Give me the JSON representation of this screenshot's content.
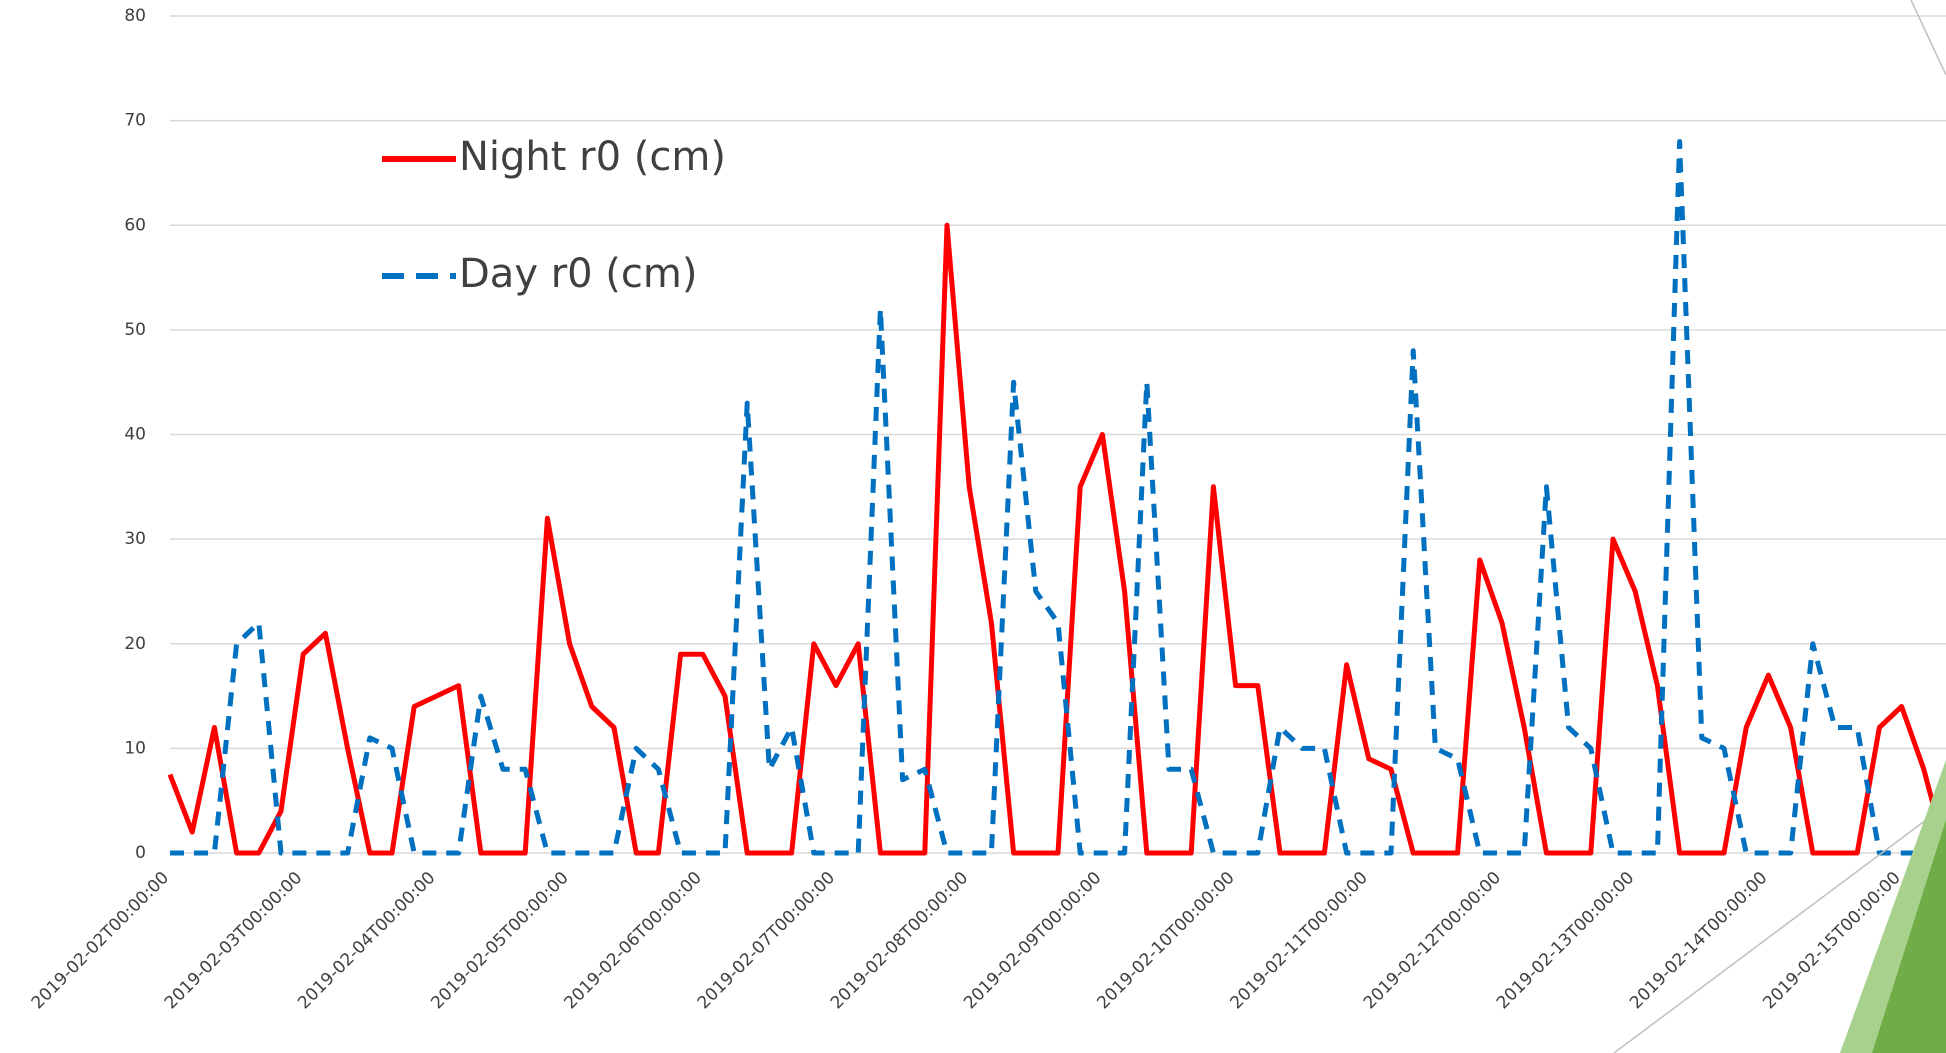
{
  "chart_data": {
    "type": "line",
    "x": [
      "2019-02-02T00:00:00",
      "2019-02-02T04:00:00",
      "2019-02-02T08:00:00",
      "2019-02-02T12:00:00",
      "2019-02-02T16:00:00",
      "2019-02-02T20:00:00",
      "2019-02-03T00:00:00",
      "2019-02-03T04:00:00",
      "2019-02-03T08:00:00",
      "2019-02-03T12:00:00",
      "2019-02-03T16:00:00",
      "2019-02-03T20:00:00",
      "2019-02-04T00:00:00",
      "2019-02-04T04:00:00",
      "2019-02-04T08:00:00",
      "2019-02-04T12:00:00",
      "2019-02-04T16:00:00",
      "2019-02-04T20:00:00",
      "2019-02-05T00:00:00",
      "2019-02-05T04:00:00",
      "2019-02-05T08:00:00",
      "2019-02-05T12:00:00",
      "2019-02-05T16:00:00",
      "2019-02-05T20:00:00",
      "2019-02-06T00:00:00",
      "2019-02-06T04:00:00",
      "2019-02-06T08:00:00",
      "2019-02-06T12:00:00",
      "2019-02-06T16:00:00",
      "2019-02-06T20:00:00",
      "2019-02-07T00:00:00",
      "2019-02-07T04:00:00",
      "2019-02-07T08:00:00",
      "2019-02-07T12:00:00",
      "2019-02-07T16:00:00",
      "2019-02-07T20:00:00",
      "2019-02-08T00:00:00",
      "2019-02-08T04:00:00",
      "2019-02-08T08:00:00",
      "2019-02-08T12:00:00",
      "2019-02-08T16:00:00",
      "2019-02-08T20:00:00",
      "2019-02-09T00:00:00",
      "2019-02-09T04:00:00",
      "2019-02-09T08:00:00",
      "2019-02-09T12:00:00",
      "2019-02-09T16:00:00",
      "2019-02-09T20:00:00",
      "2019-02-10T00:00:00",
      "2019-02-10T04:00:00",
      "2019-02-10T08:00:00",
      "2019-02-10T12:00:00",
      "2019-02-10T16:00:00",
      "2019-02-10T20:00:00",
      "2019-02-11T00:00:00",
      "2019-02-11T04:00:00",
      "2019-02-11T08:00:00",
      "2019-02-11T12:00:00",
      "2019-02-11T16:00:00",
      "2019-02-11T20:00:00",
      "2019-02-12T00:00:00",
      "2019-02-12T04:00:00",
      "2019-02-12T08:00:00",
      "2019-02-12T12:00:00",
      "2019-02-12T16:00:00",
      "2019-02-12T20:00:00",
      "2019-02-13T00:00:00",
      "2019-02-13T04:00:00",
      "2019-02-13T08:00:00",
      "2019-02-13T12:00:00",
      "2019-02-13T16:00:00",
      "2019-02-13T20:00:00",
      "2019-02-14T00:00:00",
      "2019-02-14T04:00:00",
      "2019-02-14T08:00:00",
      "2019-02-14T12:00:00",
      "2019-02-14T16:00:00",
      "2019-02-14T20:00:00",
      "2019-02-15T00:00:00",
      "2019-02-15T04:00:00",
      "2019-02-15T08:00:00"
    ],
    "series": [
      {
        "name": "Night r0 (cm)",
        "color": "#ff0000",
        "dashed": false,
        "values": [
          7.5,
          2,
          12,
          0,
          0,
          4,
          19,
          21,
          10,
          0,
          0,
          14,
          15,
          16,
          0,
          0,
          0,
          32,
          20,
          14,
          12,
          0,
          0,
          19,
          19,
          15,
          0,
          0,
          0,
          20,
          16,
          20,
          0,
          0,
          0,
          60,
          35,
          22,
          0,
          0,
          0,
          35,
          40,
          25,
          0,
          0,
          0,
          35,
          16,
          16,
          0,
          0,
          0,
          18,
          9,
          8,
          0,
          0,
          0,
          28,
          22,
          12,
          0,
          0,
          0,
          30,
          25,
          16,
          0,
          0,
          0,
          12,
          17,
          12,
          0,
          0,
          0,
          12,
          14,
          8,
          0
        ]
      },
      {
        "name": "Day r0 (cm)",
        "color": "#0070c0",
        "dashed": true,
        "values": [
          0,
          0,
          0,
          20,
          22,
          0,
          0,
          0,
          0,
          11,
          10,
          0,
          0,
          0,
          15,
          8,
          8,
          0,
          0,
          0,
          0,
          10,
          8,
          0,
          0,
          0,
          43,
          8,
          12,
          0,
          0,
          0,
          52,
          7,
          8,
          0,
          0,
          0,
          45,
          25,
          22,
          0,
          0,
          0,
          45,
          8,
          8,
          0,
          0,
          0,
          12,
          10,
          10,
          0,
          0,
          0,
          48,
          10,
          9,
          0,
          0,
          0,
          35,
          12,
          10,
          0,
          0,
          0,
          68,
          11,
          10,
          0,
          0,
          0,
          20,
          12,
          12,
          0,
          0,
          0,
          0
        ]
      }
    ],
    "xlim": [
      "2019-02-02T00:00:00",
      "2019-02-15T08:00:00"
    ],
    "xticks": [
      "2019-02-02T00:00:00",
      "2019-02-03T00:00:00",
      "2019-02-04T00:00:00",
      "2019-02-05T00:00:00",
      "2019-02-06T00:00:00",
      "2019-02-07T00:00:00",
      "2019-02-08T00:00:00",
      "2019-02-09T00:00:00",
      "2019-02-10T00:00:00",
      "2019-02-11T00:00:00",
      "2019-02-12T00:00:00",
      "2019-02-13T00:00:00",
      "2019-02-14T00:00:00",
      "2019-02-15T00:00:00"
    ],
    "ylim": [
      0,
      80
    ],
    "yticks": [
      0,
      10,
      20,
      30,
      40,
      50,
      60,
      70,
      80
    ],
    "grid": true
  }
}
